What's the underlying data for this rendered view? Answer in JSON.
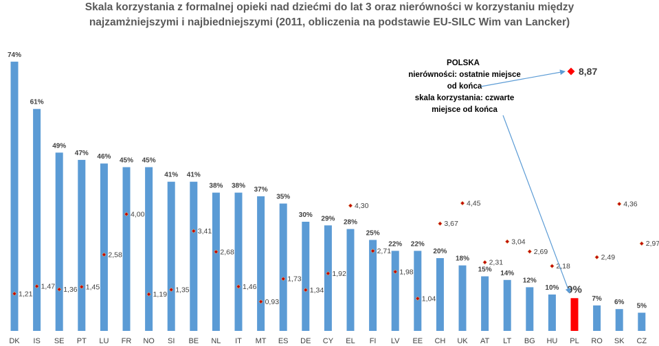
{
  "title_line1": "Skala korzystania z formalnej opieki nad dziećmi do lat 3 oraz nierówności w korzystaniu między",
  "title_line2": "najzamżniejszymi i najbiedniejszymi (2011, obliczenia na podstawie EU-SILC Wim van Lancker)",
  "chart_data": {
    "type": "bar",
    "categories": [
      "DK",
      "IS",
      "SE",
      "PT",
      "LU",
      "FR",
      "NO",
      "SI",
      "BE",
      "NL",
      "IT",
      "MT",
      "ES",
      "DE",
      "CY",
      "EL",
      "FI",
      "LV",
      "EE",
      "CH",
      "UK",
      "AT",
      "LT",
      "BG",
      "HU",
      "PL",
      "RO",
      "SK",
      "CZ"
    ],
    "series": [
      {
        "values": [
          74,
          61,
          49,
          47,
          46,
          45,
          45,
          41,
          41,
          38,
          38,
          37,
          35,
          30,
          29,
          28,
          25,
          22,
          22,
          20,
          18,
          15,
          14,
          12,
          10,
          9,
          7,
          6,
          5
        ],
        "labels": [
          "74%",
          "61%",
          "49%",
          "47%",
          "46%",
          "45%",
          "45%",
          "41%",
          "41%",
          "38%",
          "38%",
          "37%",
          "35%",
          "30%",
          "29%",
          "28%",
          "25%",
          "22%",
          "22%",
          "20%",
          "18%",
          "15%",
          "14%",
          "12%",
          "10%",
          "9%",
          "7%",
          "6%",
          "5%"
        ]
      },
      {
        "values": [
          1.21,
          1.47,
          1.36,
          1.45,
          2.58,
          4.0,
          1.19,
          1.35,
          3.41,
          2.68,
          1.46,
          0.93,
          1.73,
          1.34,
          1.92,
          4.3,
          2.71,
          1.98,
          1.04,
          3.67,
          4.45,
          2.31,
          3.04,
          2.69,
          2.18,
          8.87,
          2.49,
          4.36,
          2.97
        ],
        "labels": [
          "1,21",
          "1,47",
          "1,36",
          "1,45",
          "2,58",
          "4,00",
          "1,19",
          "1,35",
          "3,41",
          "2,68",
          "1,46",
          "0,93",
          "1,73",
          "1,34",
          "1,92",
          "4,30",
          "2,71",
          "1,98",
          "1,04",
          "3,67",
          "4,45",
          "2,31",
          "3,04",
          "2,69",
          "2,18",
          "8,87",
          "2,49",
          "4,36",
          "2,97"
        ]
      }
    ],
    "bar_color": "#5B9BD5",
    "highlight_category": "PL",
    "highlight_bar_color": "#FF0000",
    "point_color": "#C00000",
    "highlight_point_color": "#FF0000",
    "annotation": {
      "lines": [
        "POLSKA",
        "nierówności: ostatnie miejsce",
        "od końca",
        "skala korzystania: czwarte",
        "miejsce od końca"
      ],
      "arrow_color": "#5B9BD5"
    }
  }
}
